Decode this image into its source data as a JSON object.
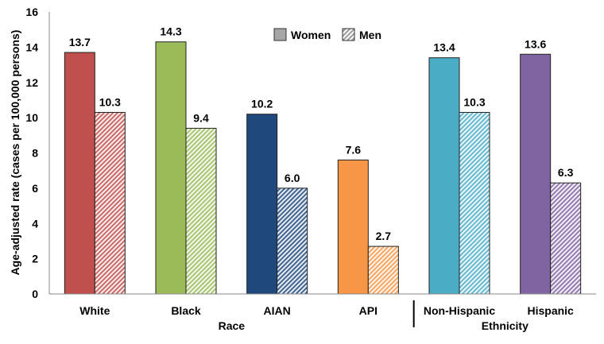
{
  "chart_data": {
    "type": "bar",
    "title": "",
    "ylabel": "Age-adjusted rate (cases per 100,000 persons)",
    "ylim": [
      0,
      16
    ],
    "yticks": [
      0,
      2,
      4,
      6,
      8,
      10,
      12,
      14,
      16
    ],
    "grid": false,
    "legend_placement": "top-center",
    "categories": [
      "White",
      "Black",
      "AIAN",
      "API",
      "Non-Hispanic",
      "Hispanic"
    ],
    "group_labels": [
      {
        "label": "Race",
        "categories": [
          "White",
          "Black",
          "AIAN",
          "API"
        ]
      },
      {
        "label": "Ethnicity",
        "categories": [
          "Non-Hispanic",
          "Hispanic"
        ]
      }
    ],
    "category_colors": [
      "#C0504D",
      "#9BBB59",
      "#1F497D",
      "#F79646",
      "#4BACC6",
      "#8064A2"
    ],
    "series": [
      {
        "name": "Women",
        "pattern": "solid",
        "values": [
          13.7,
          14.3,
          10.2,
          7.6,
          13.4,
          13.6
        ]
      },
      {
        "name": "Men",
        "pattern": "hatched",
        "values": [
          10.3,
          9.4,
          6.0,
          2.7,
          10.3,
          6.3
        ]
      }
    ]
  }
}
